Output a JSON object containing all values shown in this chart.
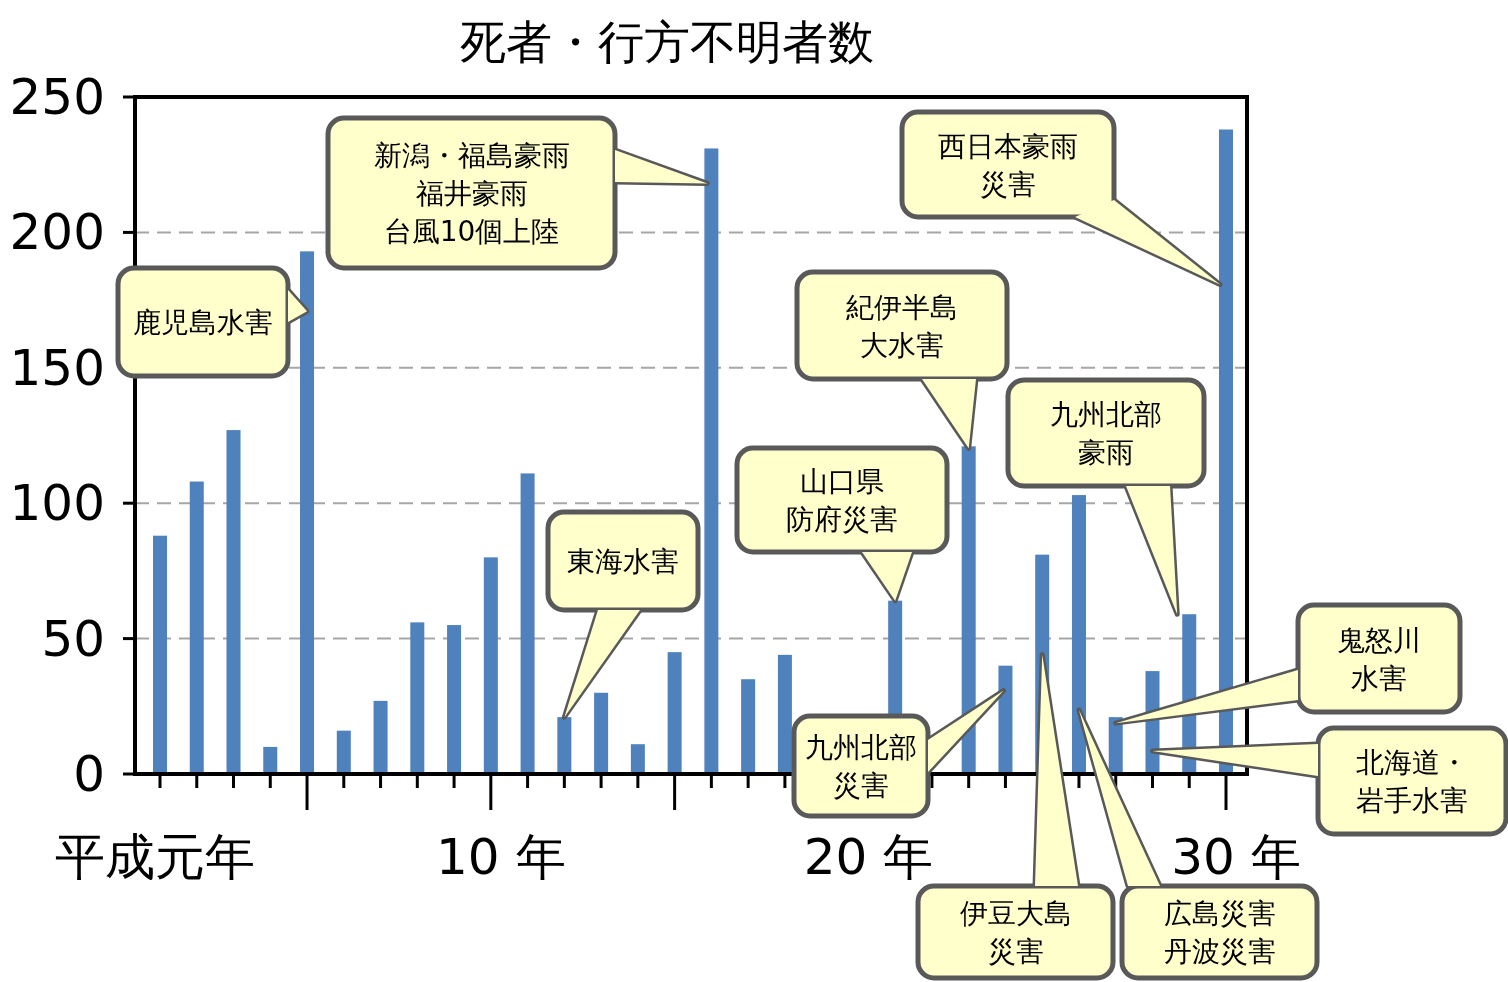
{
  "chart_data": {
    "type": "bar",
    "title": "死者・行方不明者数",
    "categories": [
      "平成元年",
      null,
      null,
      null,
      null,
      null,
      null,
      null,
      null,
      "10 年",
      null,
      null,
      null,
      null,
      null,
      null,
      null,
      null,
      null,
      "20 年",
      null,
      null,
      null,
      null,
      null,
      null,
      null,
      null,
      null,
      "30 年"
    ],
    "values": [
      88,
      108,
      127,
      10,
      193,
      16,
      27,
      56,
      55,
      80,
      111,
      21,
      30,
      11,
      45,
      231,
      35,
      44,
      null,
      null,
      64,
      null,
      121,
      40,
      81,
      103,
      21,
      38,
      59,
      238
    ],
    "color": "#4f81bd",
    "ylim": [
      0,
      250
    ],
    "yticks": [
      0,
      50,
      100,
      150,
      200,
      250
    ],
    "grid": "y",
    "annotations": [
      "鹿児島水害",
      "新潟・福島豪雨福井豪雨台風10個上陸",
      "西日本豪雨災害",
      "紀伊半島大水害",
      "九州北部豪雨",
      "山口県防府災害",
      "東海水害",
      "九州北部災害",
      "伊豆大島災害",
      "広島災害丹波災害",
      "鬼怒川水害",
      "北海道・岩手水害"
    ]
  }
}
